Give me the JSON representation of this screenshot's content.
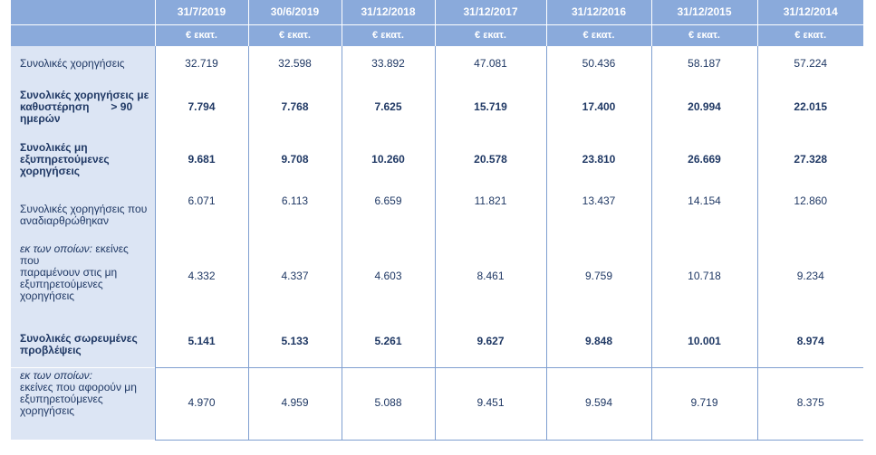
{
  "header": {
    "dates": [
      "31/7/2019",
      "30/6/2019",
      "31/12/2018",
      "31/12/2017",
      "31/12/2016",
      "31/12/2015",
      "31/12/2014"
    ],
    "units": [
      "€ εκατ.",
      "€ εκατ.",
      "€ εκατ.",
      "€ εκατ.",
      "€ εκατ.",
      "€ εκατ.",
      "€ εκατ."
    ]
  },
  "rows": [
    {
      "label": "Συνολικές χορηγήσεις",
      "values": [
        "32.719",
        "32.598",
        "33.892",
        "47.081",
        "50.436",
        "58.187",
        "57.224"
      ]
    },
    {
      "label_line1": "Συνολικές χορηγήσεις με",
      "label_line2": "καθυστέρηση",
      "label_gt": "> 90",
      "label_line3": "ημερών",
      "values": [
        "7.794",
        "7.768",
        "7.625",
        "15.719",
        "17.400",
        "20.994",
        "22.015"
      ]
    },
    {
      "label_line1": "Συνολικές μη",
      "label_line2": "εξυπηρετούμενες",
      "label_line3": "χορηγήσεις",
      "values": [
        "9.681",
        "9.708",
        "10.260",
        "20.578",
        "23.810",
        "26.669",
        "27.328"
      ]
    },
    {
      "label_line1": "Συνολικές χορηγήσεις που",
      "label_line2": "αναδιαρθρώθηκαν",
      "values": [
        "6.071",
        "6.113",
        "6.659",
        "11.821",
        "13.437",
        "14.154",
        "12.860"
      ]
    },
    {
      "label_italic": "εκ των οποίων:",
      "label_line1": "εκείνες που",
      "label_line2": "παραμένουν στις μη",
      "label_line3": "εξυπηρετούμενες",
      "label_line4": "χορηγήσεις",
      "values": [
        "4.332",
        "4.337",
        "4.603",
        "8.461",
        "9.759",
        "10.718",
        "9.234"
      ]
    },
    {
      "label_line1": "Συνολικές σωρευμένες",
      "label_line2": "προβλέψεις",
      "values": [
        "5.141",
        "5.133",
        "5.261",
        "9.627",
        "9.848",
        "10.001",
        "8.974"
      ]
    },
    {
      "label_italic": "εκ των οποίων:",
      "label_line1": "εκείνες που αφορούν μη",
      "label_line2": "εξυπηρετούμενες",
      "label_line3": "χορηγήσεις",
      "values": [
        "4.970",
        "4.959",
        "5.088",
        "9.451",
        "9.594",
        "9.719",
        "8.375"
      ]
    }
  ],
  "colors": {
    "header_bg": "#8aaadb",
    "label_bg": "#dce5f4",
    "text": "#1f3864",
    "border": "#7f9fd0"
  }
}
